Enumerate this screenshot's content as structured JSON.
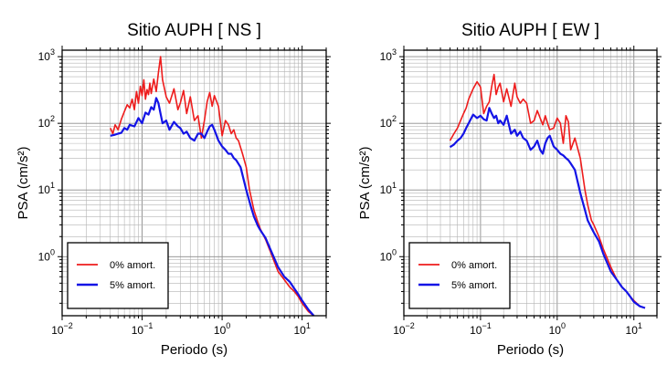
{
  "chart_data": [
    {
      "type": "line",
      "title": "Sitio AUPH [ NS ]",
      "xlabel": "Periodo (s)",
      "ylabel": "PSA (cm/s²)",
      "x_scale": "log",
      "y_scale": "log",
      "xlim": [
        0.01,
        20
      ],
      "ylim": [
        0.13,
        1250
      ],
      "x_ticks": [
        {
          "base": "10",
          "exp": "−2"
        },
        {
          "base": "10",
          "exp": "−1"
        },
        {
          "base": "10",
          "exp": "0"
        },
        {
          "base": "10",
          "exp": "1"
        }
      ],
      "y_ticks": [
        {
          "base": "10",
          "exp": "0"
        },
        {
          "base": "10",
          "exp": "1"
        },
        {
          "base": "10",
          "exp": "2"
        },
        {
          "base": "10",
          "exp": "3"
        }
      ],
      "grid": true,
      "legend_position": "bottom-left",
      "series": [
        {
          "name": "0% amort.",
          "color": "#ee1c1c",
          "x": [
            0.04,
            0.043,
            0.046,
            0.05,
            0.055,
            0.06,
            0.065,
            0.07,
            0.075,
            0.08,
            0.085,
            0.09,
            0.095,
            0.1,
            0.105,
            0.11,
            0.115,
            0.12,
            0.125,
            0.13,
            0.14,
            0.15,
            0.16,
            0.17,
            0.18,
            0.2,
            0.22,
            0.25,
            0.28,
            0.3,
            0.33,
            0.36,
            0.4,
            0.45,
            0.5,
            0.55,
            0.6,
            0.65,
            0.7,
            0.75,
            0.8,
            0.9,
            1.0,
            1.1,
            1.2,
            1.3,
            1.4,
            1.5,
            1.6,
            1.8,
            2.0,
            2.2,
            2.5,
            2.8,
            3.0,
            3.5,
            4.0,
            5.0,
            6.0,
            7.0,
            8.0,
            9.0,
            10.0,
            12.0,
            14.0
          ],
          "values": [
            85,
            70,
            95,
            80,
            115,
            150,
            190,
            170,
            230,
            160,
            300,
            200,
            360,
            260,
            450,
            230,
            320,
            270,
            400,
            280,
            460,
            300,
            580,
            1000,
            450,
            250,
            200,
            330,
            160,
            200,
            310,
            140,
            250,
            110,
            130,
            60,
            110,
            210,
            290,
            180,
            260,
            180,
            65,
            110,
            95,
            70,
            80,
            60,
            55,
            35,
            22,
            10,
            5,
            3.3,
            2.6,
            1.8,
            1.2,
            0.6,
            0.45,
            0.35,
            0.3,
            0.25,
            0.2,
            0.15,
            0.13
          ]
        },
        {
          "name": "5% amort.",
          "color": "#1414e6",
          "x": [
            0.04,
            0.045,
            0.05,
            0.055,
            0.06,
            0.065,
            0.07,
            0.08,
            0.09,
            0.1,
            0.11,
            0.12,
            0.13,
            0.14,
            0.15,
            0.16,
            0.17,
            0.18,
            0.2,
            0.22,
            0.25,
            0.28,
            0.3,
            0.33,
            0.36,
            0.4,
            0.45,
            0.5,
            0.55,
            0.6,
            0.65,
            0.7,
            0.75,
            0.8,
            0.9,
            1.0,
            1.1,
            1.2,
            1.3,
            1.4,
            1.5,
            1.7,
            2.0,
            2.3,
            2.5,
            2.8,
            3.0,
            3.5,
            4.0,
            5.0,
            6.0,
            7.0,
            8.0,
            9.0,
            10.0,
            12.0,
            14.0
          ],
          "values": [
            65,
            67,
            70,
            72,
            85,
            80,
            95,
            90,
            120,
            100,
            145,
            135,
            175,
            160,
            240,
            200,
            140,
            100,
            110,
            80,
            105,
            90,
            85,
            70,
            75,
            60,
            55,
            70,
            70,
            60,
            75,
            90,
            95,
            80,
            55,
            45,
            40,
            35,
            35,
            30,
            28,
            22,
            10,
            5.5,
            4,
            2.9,
            2.5,
            1.9,
            1.3,
            0.7,
            0.5,
            0.42,
            0.33,
            0.27,
            0.22,
            0.16,
            0.13
          ]
        }
      ]
    },
    {
      "type": "line",
      "title": "Sitio AUPH [ EW ]",
      "xlabel": "Periodo (s)",
      "ylabel": "PSA (cm/s²)",
      "x_scale": "log",
      "y_scale": "log",
      "xlim": [
        0.01,
        20
      ],
      "ylim": [
        0.13,
        1250
      ],
      "x_ticks": [
        {
          "base": "10",
          "exp": "−2"
        },
        {
          "base": "10",
          "exp": "−1"
        },
        {
          "base": "10",
          "exp": "0"
        },
        {
          "base": "10",
          "exp": "1"
        }
      ],
      "y_ticks": [
        {
          "base": "10",
          "exp": "0"
        },
        {
          "base": "10",
          "exp": "1"
        },
        {
          "base": "10",
          "exp": "2"
        },
        {
          "base": "10",
          "exp": "3"
        }
      ],
      "grid": true,
      "legend_position": "bottom-left",
      "series": [
        {
          "name": "0% amort.",
          "color": "#ee1c1c",
          "x": [
            0.04,
            0.045,
            0.05,
            0.055,
            0.06,
            0.065,
            0.07,
            0.08,
            0.09,
            0.1,
            0.11,
            0.12,
            0.13,
            0.14,
            0.15,
            0.16,
            0.17,
            0.18,
            0.2,
            0.22,
            0.25,
            0.28,
            0.3,
            0.33,
            0.36,
            0.4,
            0.45,
            0.5,
            0.55,
            0.6,
            0.65,
            0.7,
            0.75,
            0.8,
            0.9,
            1.0,
            1.1,
            1.2,
            1.3,
            1.4,
            1.5,
            1.7,
            2.0,
            2.3,
            2.5,
            2.8,
            3.0,
            3.5,
            4.0,
            5.0,
            6.0,
            7.0,
            8.0,
            9.0,
            10.0,
            12.0,
            14.0
          ],
          "values": [
            55,
            70,
            85,
            110,
            140,
            170,
            230,
            330,
            420,
            350,
            140,
            180,
            210,
            360,
            540,
            270,
            350,
            400,
            210,
            330,
            180,
            400,
            250,
            200,
            230,
            200,
            100,
            110,
            155,
            120,
            95,
            130,
            100,
            80,
            85,
            120,
            100,
            50,
            130,
            105,
            40,
            60,
            30,
            10,
            6,
            3.5,
            3,
            2,
            1.3,
            0.7,
            0.45,
            0.35,
            0.3,
            0.25,
            0.22,
            0.18,
            0.17
          ]
        },
        {
          "name": "5% amort.",
          "color": "#1414e6",
          "x": [
            0.04,
            0.045,
            0.05,
            0.055,
            0.06,
            0.065,
            0.07,
            0.08,
            0.09,
            0.1,
            0.11,
            0.12,
            0.13,
            0.14,
            0.15,
            0.16,
            0.17,
            0.18,
            0.2,
            0.22,
            0.25,
            0.28,
            0.3,
            0.33,
            0.36,
            0.4,
            0.45,
            0.5,
            0.55,
            0.6,
            0.65,
            0.7,
            0.75,
            0.8,
            0.9,
            1.0,
            1.1,
            1.2,
            1.3,
            1.4,
            1.5,
            1.7,
            2.0,
            2.3,
            2.5,
            2.8,
            3.0,
            3.5,
            4.0,
            5.0,
            6.0,
            7.0,
            8.0,
            9.0,
            10.0,
            12.0,
            14.0
          ],
          "values": [
            44,
            48,
            55,
            60,
            70,
            85,
            100,
            135,
            120,
            130,
            115,
            110,
            170,
            140,
            120,
            130,
            100,
            110,
            95,
            130,
            70,
            80,
            65,
            75,
            60,
            55,
            40,
            45,
            55,
            40,
            35,
            50,
            60,
            65,
            45,
            40,
            35,
            33,
            30,
            28,
            25,
            20,
            9,
            5,
            3.5,
            2.7,
            2.3,
            1.7,
            1.1,
            0.6,
            0.45,
            0.35,
            0.3,
            0.25,
            0.21,
            0.18,
            0.17
          ]
        }
      ]
    }
  ]
}
